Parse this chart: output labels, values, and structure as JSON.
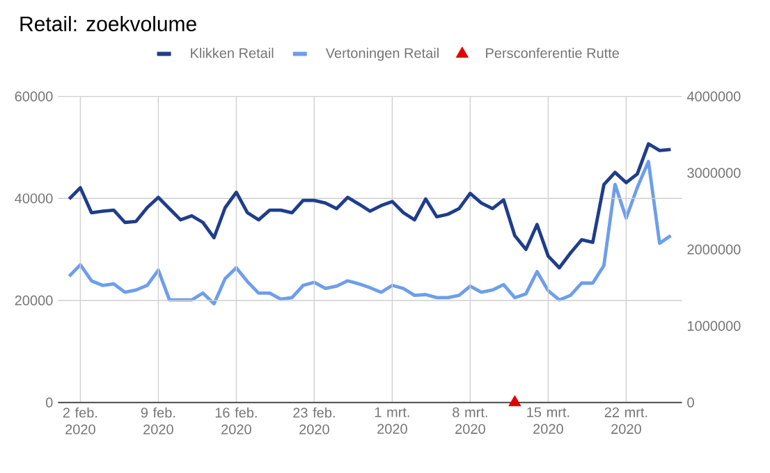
{
  "chart_data": {
    "type": "line",
    "title": "Retail: zoekvolume",
    "x": [
      "2020-02-01",
      "2020-02-02",
      "2020-02-03",
      "2020-02-04",
      "2020-02-05",
      "2020-02-06",
      "2020-02-07",
      "2020-02-08",
      "2020-02-09",
      "2020-02-10",
      "2020-02-11",
      "2020-02-12",
      "2020-02-13",
      "2020-02-14",
      "2020-02-15",
      "2020-02-16",
      "2020-02-17",
      "2020-02-18",
      "2020-02-19",
      "2020-02-20",
      "2020-02-21",
      "2020-02-22",
      "2020-02-23",
      "2020-02-24",
      "2020-02-25",
      "2020-02-26",
      "2020-02-27",
      "2020-02-28",
      "2020-02-29",
      "2020-03-01",
      "2020-03-02",
      "2020-03-03",
      "2020-03-04",
      "2020-03-05",
      "2020-03-06",
      "2020-03-07",
      "2020-03-08",
      "2020-03-09",
      "2020-03-10",
      "2020-03-11",
      "2020-03-12",
      "2020-03-13",
      "2020-03-14",
      "2020-03-15",
      "2020-03-16",
      "2020-03-17",
      "2020-03-18",
      "2020-03-19",
      "2020-03-20",
      "2020-03-21",
      "2020-03-22",
      "2020-03-23",
      "2020-03-24",
      "2020-03-25",
      "2020-03-26"
    ],
    "series": [
      {
        "name": "Klikken Retail",
        "color": "#1f3d8c",
        "marker": "none",
        "values": [
          39900,
          42100,
          37200,
          37500,
          37700,
          35300,
          35500,
          38200,
          40200,
          38000,
          35800,
          36600,
          35300,
          32300,
          38200,
          41200,
          37200,
          35800,
          37700,
          37700,
          37200,
          39600,
          39600,
          39100,
          38000,
          40200,
          38900,
          37500,
          38600,
          39400,
          37200,
          35800,
          39900,
          36400,
          36900,
          38000,
          41000,
          39100,
          38000,
          39700,
          32700,
          30000,
          34900,
          28700,
          26400,
          29300,
          31900,
          31400,
          42700,
          45100,
          43100,
          44800,
          50700,
          49400,
          49600
        ]
      },
      {
        "name": "Vertoningen Retail",
        "color": "#6d9eeb",
        "marker": "none",
        "axis": "y2",
        "values": [
          1650000,
          1800000,
          1590000,
          1530000,
          1550000,
          1440000,
          1470000,
          1530000,
          1730000,
          1340000,
          1340000,
          1340000,
          1430000,
          1290000,
          1620000,
          1760000,
          1580000,
          1430000,
          1430000,
          1350000,
          1370000,
          1530000,
          1570000,
          1490000,
          1520000,
          1590000,
          1550000,
          1500000,
          1440000,
          1530000,
          1490000,
          1400000,
          1410000,
          1370000,
          1370000,
          1400000,
          1520000,
          1440000,
          1470000,
          1540000,
          1370000,
          1420000,
          1710000,
          1460000,
          1340000,
          1400000,
          1560000,
          1560000,
          1790000,
          2850000,
          2410000,
          2810000,
          3150000,
          2080000,
          2180000
        ]
      },
      {
        "name": "Persconferentie Rutte",
        "color": "#e00000",
        "type": "scatter",
        "marker": "triangle",
        "x": [
          "2020-03-12"
        ],
        "values": [
          0
        ]
      }
    ],
    "xlim": [
      "2020-01-31",
      "2020-03-27"
    ],
    "xticks": [
      {
        "value": "2020-02-02",
        "label": "2 feb. 2020"
      },
      {
        "value": "2020-02-09",
        "label": "9 feb. 2020"
      },
      {
        "value": "2020-02-16",
        "label": "16 feb. 2020"
      },
      {
        "value": "2020-02-23",
        "label": "23 feb. 2020"
      },
      {
        "value": "2020-03-01",
        "label": "1 mrt. 2020"
      },
      {
        "value": "2020-03-08",
        "label": "8 mrt. 2020"
      },
      {
        "value": "2020-03-15",
        "label": "15 mrt. 2020"
      },
      {
        "value": "2020-03-22",
        "label": "22 mrt. 2020"
      }
    ],
    "ylim": [
      0,
      60000
    ],
    "yticks": [
      0,
      20000,
      40000,
      60000
    ],
    "y2lim": [
      0,
      4000000
    ],
    "y2ticks": [
      0,
      1000000,
      2000000,
      3000000,
      4000000
    ],
    "grid": true,
    "legend": "top"
  }
}
